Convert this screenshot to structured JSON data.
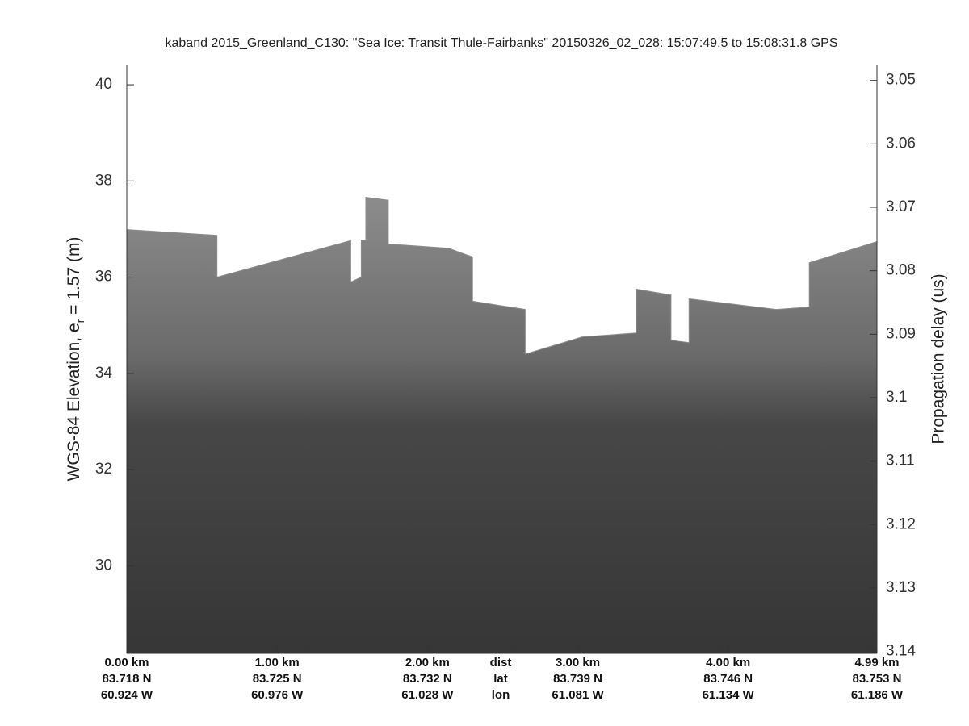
{
  "chart_data": {
    "type": "echogram",
    "title": "kaband 2015_Greenland_C130: \"Sea Ice: Transit Thule-Fairbanks\"  20150326_02_028: 15:07:49.5 to 15:08:31.8 GPS",
    "ylabel": {
      "main": "WGS-84 Elevation, e",
      "sub": "r",
      "rest": " = 1.57 (m)"
    },
    "y2label": "Propagation delay (us)",
    "xlim": [
      0,
      4.99
    ],
    "ylim": [
      28.18,
      40.42
    ],
    "yticks": [
      30,
      32,
      34,
      36,
      38,
      40
    ],
    "y2lim": [
      3.0475,
      3.1403
    ],
    "y2_reversed": true,
    "y2ticks": [
      3.05,
      3.06,
      3.07,
      3.08,
      3.09,
      3.1,
      3.11,
      3.12,
      3.13,
      3.14
    ],
    "xticks": [
      {
        "value": 0,
        "label": "0.00 km"
      },
      {
        "value": 1,
        "label": "1.00 km"
      },
      {
        "value": 2,
        "label": "2.00 km"
      },
      {
        "value": 3,
        "label": "3.00 km"
      },
      {
        "value": 4,
        "label": "4.00 km"
      },
      {
        "value": 4.99,
        "label": "4.99 km"
      }
    ],
    "lat_labels": [
      "83.718 N",
      "83.725 N",
      "83.732 N",
      "83.739 N",
      "83.746 N",
      "83.753 N"
    ],
    "lon_labels": [
      "60.924 W",
      "60.976 W",
      "61.028 W",
      "61.081 W",
      "61.134 W",
      "61.186 W"
    ],
    "row_labels": [
      "dist",
      "lat",
      "lon"
    ],
    "series": [
      {
        "name": "surface",
        "color": "#8c8c8c",
        "x": [
          0,
          0.6,
          0.6,
          1.49,
          1.49,
          1.56,
          1.56,
          1.59,
          1.59,
          1.74,
          1.74,
          2.14,
          2.3,
          2.3,
          2.65,
          2.65,
          3.03,
          3.39,
          3.39,
          3.62,
          3.62,
          3.74,
          3.74,
          4.32,
          4.54,
          4.54,
          4.99
        ],
        "values": [
          36.99,
          36.87,
          36.0,
          36.76,
          35.9,
          36.0,
          36.77,
          36.77,
          37.66,
          37.6,
          36.69,
          36.6,
          36.42,
          35.5,
          35.33,
          34.4,
          34.76,
          34.84,
          35.75,
          35.63,
          34.69,
          34.64,
          35.55,
          35.33,
          35.38,
          36.3,
          36.74
        ]
      }
    ]
  }
}
